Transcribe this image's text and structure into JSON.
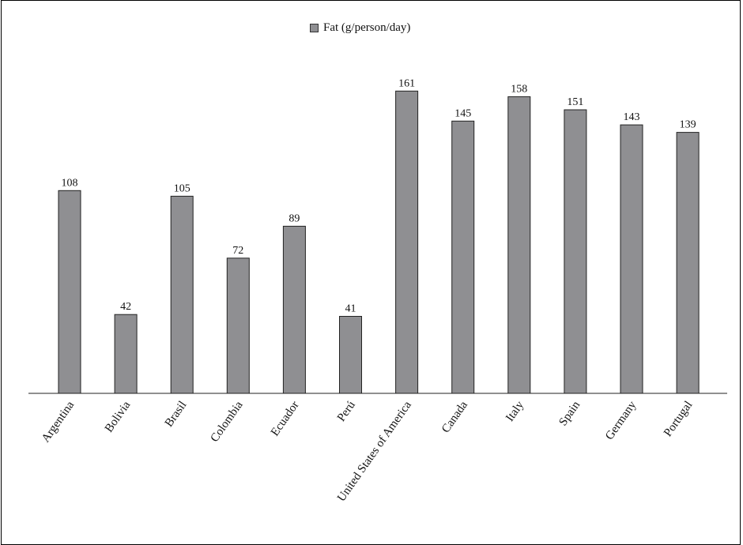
{
  "chart_data": {
    "type": "bar",
    "categories": [
      "Argentina",
      "Bolivia",
      "Brasil",
      "Colombia",
      "Ecuador",
      "Perú",
      "United States of America",
      "Canada",
      "Italy",
      "Spain",
      "Germany",
      "Portugal"
    ],
    "series": [
      {
        "name": "Fat (g/person/day)",
        "values": [
          108,
          42,
          105,
          72,
          89,
          41,
          161,
          145,
          158,
          151,
          143,
          139
        ]
      }
    ],
    "data_labels": [
      "108",
      "42",
      "105",
      "72",
      "89",
      "41",
      "161",
      "145",
      "158",
      "151",
      "143",
      "139"
    ],
    "ylim": [
      0,
      167
    ],
    "y_axis_visible": false,
    "grid": false,
    "legend_position": "top-center",
    "bar_color": "#8f8f92",
    "bar_stroke": "#222222"
  }
}
